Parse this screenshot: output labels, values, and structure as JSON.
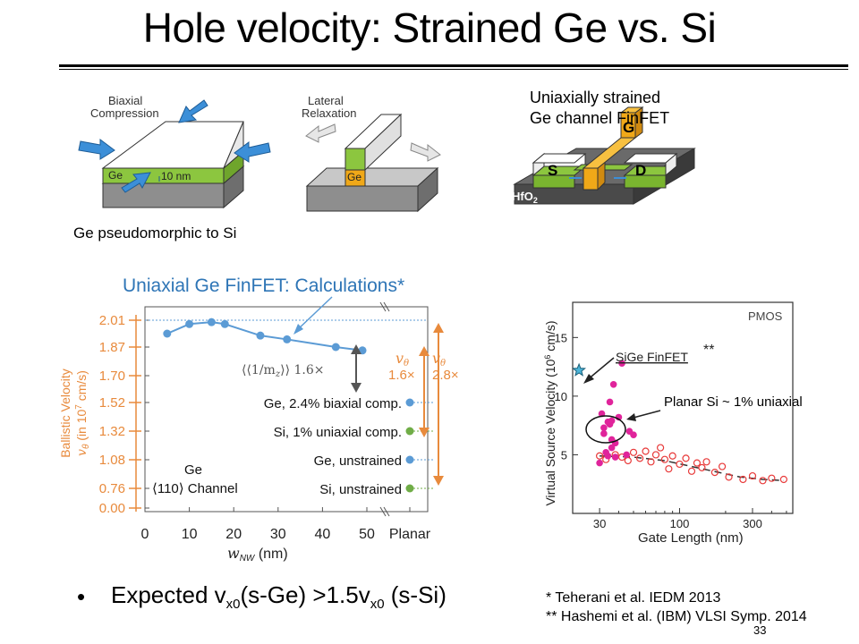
{
  "title": "Hole velocity: Strained Ge vs. Si",
  "diagram_left": {
    "biaxial_label_1": "Biaxial",
    "biaxial_label_2": "Compression",
    "ge_label": "Ge",
    "thickness_label": "10 nm",
    "lateral_label_1": "Lateral",
    "lateral_label_2": "Relaxation",
    "ge_label_2": "Ge",
    "caption": "Ge pseudomorphic to Si"
  },
  "finfet": {
    "caption_line1": "Uniaxially strained",
    "caption_line2": "Ge channel FinFET",
    "gate": "G",
    "source": "S",
    "drain": "D",
    "oxide": "HfO",
    "oxide_sub": "2"
  },
  "chart_data": [
    {
      "type": "line",
      "title": "Uniaxial Ge FinFET: Calculations*",
      "xlabel": "w",
      "xlabel_sub": "NW",
      "xlabel_unit": "(nm)",
      "ylabel_line1": "Ballistic Velocity",
      "ylabel_line2": "v",
      "ylabel_sub": "θ",
      "ylabel_line2_rest": "(in 10",
      "ylabel_sup": "7",
      "ylabel_tail": "cm/s)",
      "x_ticks": [
        "0",
        "10",
        "20",
        "30",
        "40",
        "50",
        "Planar"
      ],
      "y_ticks": [
        "2.01",
        "1.87",
        "1.70",
        "1.52",
        "1.32",
        "1.08",
        "0.76",
        "0.00"
      ],
      "xlim": [
        0,
        50
      ],
      "ylim": [
        0,
        2.01
      ],
      "series": [
        {
          "x": [
            5,
            10,
            15,
            18,
            26,
            32,
            43,
            49
          ],
          "y": [
            1.94,
            1.99,
            2.0,
            1.99,
            1.93,
            1.91,
            1.87,
            1.85
          ],
          "color": "#5b9bd5"
        }
      ],
      "planar_points": [
        {
          "label": "Ge, 2.4% biaxial comp.",
          "value": 1.52,
          "color": "#5b9bd5"
        },
        {
          "label": "Si, 1% uniaxial comp.",
          "value": 1.32,
          "color": "#70ad47"
        },
        {
          "label": "Ge, unstrained",
          "value": 1.08,
          "color": "#5b9bd5"
        },
        {
          "label": "Si, unstrained",
          "value": 0.76,
          "color": "#70ad47"
        }
      ],
      "annotations": {
        "mass_ratio": "⟨⟨1/m",
        "mass_sub": "z",
        "mass_tail": "⟩⟩ 1.6×",
        "v_ratio_1_symbol": "v",
        "v_ratio_1_sub": "θ",
        "v_ratio_1_value": "1.6×",
        "v_ratio_2_symbol": "v",
        "v_ratio_2_sub": "θ",
        "v_ratio_2_value": "2.8×",
        "channel_1": "Ge",
        "channel_2": "⟨110⟩ Channel"
      }
    },
    {
      "type": "scatter",
      "title": "PMOS",
      "xlabel": "Gate Length (nm)",
      "ylabel_pre": "Virtual Source Velocity (10",
      "ylabel_sup": "6",
      "ylabel_post": " cm/s)",
      "x_scale": "log",
      "x_ticks": [
        "30",
        "100",
        "300"
      ],
      "y_ticks": [
        "5",
        "10",
        "15"
      ],
      "xlim": [
        20,
        550
      ],
      "ylim": [
        0,
        18
      ],
      "sige_point": {
        "label": "SiGe FinFET",
        "note": "**",
        "x": 22,
        "y": 12.2
      },
      "planar_label": "Planar Si ~ 1% uniaxial",
      "filled": {
        "x": [
          30,
          31,
          32,
          33,
          34,
          35,
          35,
          36,
          36,
          37,
          38,
          40,
          42,
          45,
          47,
          50,
          32,
          34,
          36,
          38
        ],
        "y": [
          4.3,
          8.5,
          6.8,
          5.2,
          4.9,
          7.6,
          9.5,
          6.3,
          7.9,
          11.0,
          4.8,
          8.2,
          12.8,
          5.0,
          7.0,
          6.7,
          7.3,
          7.8,
          5.6,
          6.0
        ],
        "color": "#e0249b"
      },
      "open": {
        "x": [
          30,
          33,
          38,
          42,
          46,
          50,
          55,
          60,
          65,
          70,
          75,
          80,
          85,
          90,
          100,
          110,
          120,
          130,
          140,
          150,
          170,
          190,
          210,
          260,
          300,
          350,
          400,
          480
        ],
        "y": [
          4.9,
          4.6,
          5.0,
          4.8,
          4.5,
          5.2,
          4.7,
          5.3,
          4.4,
          5.0,
          5.6,
          4.6,
          3.8,
          4.9,
          4.2,
          4.7,
          3.6,
          4.3,
          3.9,
          4.4,
          3.5,
          4.0,
          3.1,
          2.9,
          3.2,
          2.8,
          3.0,
          2.9
        ],
        "color": "#e83a3a"
      },
      "fit": {
        "x": [
          30,
          50,
          80,
          120,
          180,
          250,
          350,
          480
        ],
        "y": [
          4.9,
          4.8,
          4.5,
          4.0,
          3.5,
          3.1,
          2.9,
          2.8
        ]
      }
    }
  ],
  "bullet": {
    "dot": "•",
    "prefix": "Expected v",
    "sub1": "x0",
    "mid": "(s-Ge) >1.5v",
    "sub2": "x0",
    "suffix": " (s-Si)"
  },
  "refs": {
    "ref1": "*  Teherani et al. IEDM 2013",
    "ref2": "** Hashemi et al. (IBM) VLSI Symp. 2014"
  },
  "slide_number": "33",
  "colors": {
    "orange": "#e88a3c",
    "blue": "#5b9bd5",
    "green": "#70ad47",
    "ge_green": "#8cc63f",
    "gate_orange": "#f0a818",
    "magenta": "#e0249b"
  }
}
